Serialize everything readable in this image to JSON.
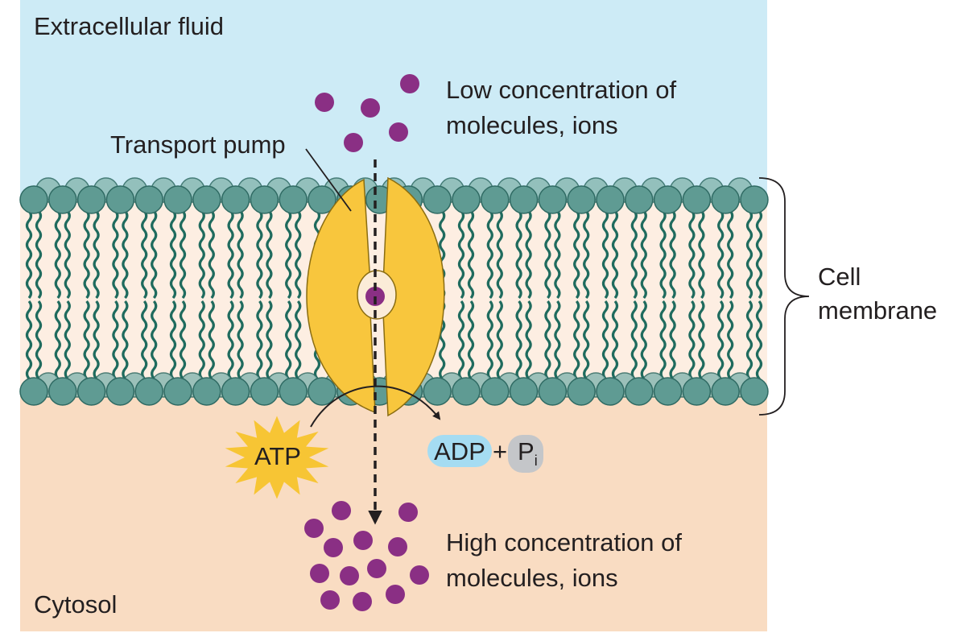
{
  "regions": {
    "extracellular": "Extracellular fluid",
    "cytosol": "Cytosol"
  },
  "labels": {
    "transport_pump": "Transport pump",
    "low_concentration": [
      "Low concentration of",
      "molecules, ions"
    ],
    "high_concentration": [
      "High concentration of",
      "molecules, ions"
    ],
    "cell_membrane": [
      "Cell",
      "membrane"
    ]
  },
  "reaction": {
    "atp": "ATP",
    "adp": "ADP",
    "plus": "+",
    "phosphate": "P",
    "phosphate_subscript": "i"
  },
  "colors": {
    "extracellular_bg": "#cdebf6",
    "cytosol_bg": "#f9dcc2",
    "membrane_core": "#fdeee2",
    "phospholipid_head": "#5f9b93",
    "phospholipid_head_stroke": "#2f6a63",
    "phospholipid_tail": "#1f6b5e",
    "pump": "#f8c63d",
    "pump_stroke": "#8a6d12",
    "molecule": "#8a2f84",
    "atp_star": "#f7c534",
    "adp_pill": "#a5dcf2",
    "phosphate_pill": "#c4c6c9"
  }
}
